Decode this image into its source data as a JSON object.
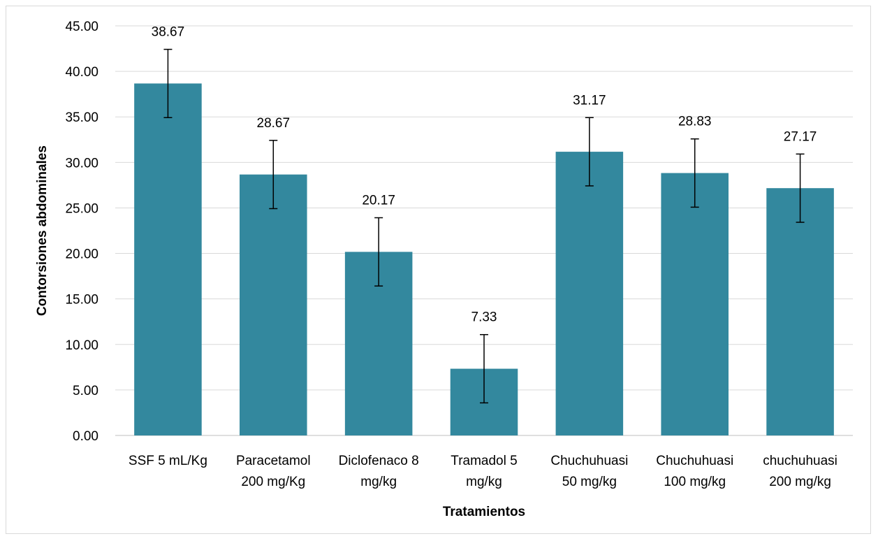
{
  "chart_data": {
    "type": "bar",
    "title": "",
    "xlabel": "Tratamientos",
    "ylabel": "Contorsiones abdominales",
    "ylim": [
      0,
      45
    ],
    "ytick_step": 5,
    "ytick_labels": [
      "0.00",
      "5.00",
      "10.00",
      "15.00",
      "20.00",
      "25.00",
      "30.00",
      "35.00",
      "40.00",
      "45.00"
    ],
    "grid": true,
    "legend": "none",
    "categories": [
      [
        "SSF 5 mL/Kg"
      ],
      [
        "Paracetamol",
        "200 mg/Kg"
      ],
      [
        "Diclofenaco 8",
        "mg/kg"
      ],
      [
        "Tramadol 5",
        "mg/kg"
      ],
      [
        "Chuchuhuasi",
        "50 mg/kg"
      ],
      [
        "Chuchuhuasi",
        "100 mg/kg"
      ],
      [
        "chuchuhuasi",
        "200 mg/kg"
      ]
    ],
    "values": [
      38.67,
      28.67,
      20.17,
      7.33,
      31.17,
      28.83,
      27.17
    ],
    "value_labels": [
      "38.67",
      "28.67",
      "20.17",
      "7.33",
      "31.17",
      "28.83",
      "27.17"
    ],
    "error": [
      3.75,
      3.75,
      3.75,
      3.75,
      3.75,
      3.75,
      3.75
    ],
    "colors": {
      "bar": "#33889e",
      "grid": "#d9d9d9",
      "axis": "#bfbfbf",
      "error": "#000000"
    }
  }
}
